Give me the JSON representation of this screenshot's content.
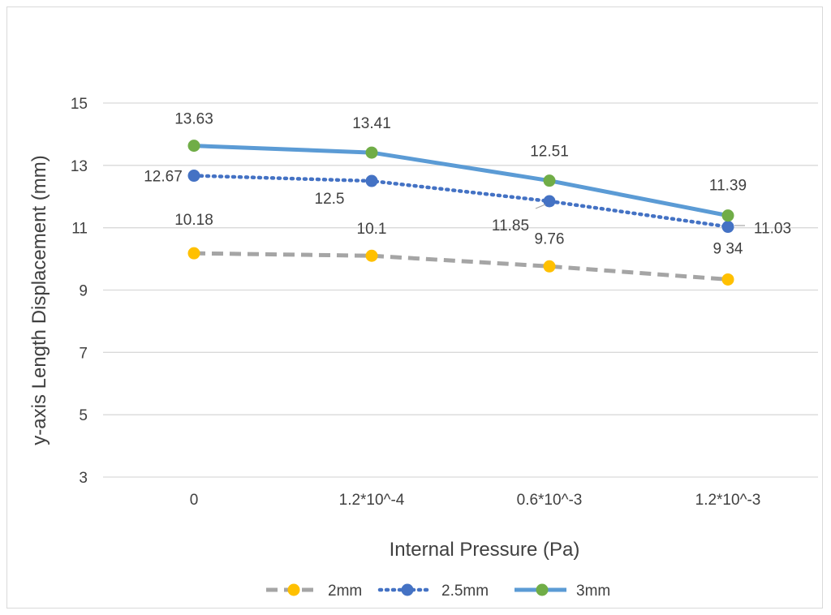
{
  "chart_data": {
    "type": "line",
    "categories": [
      "0",
      "1.2*10^-4",
      "0.6*10^-3",
      "1.2*10^-3"
    ],
    "series": [
      {
        "name": "2mm",
        "values": [
          10.18,
          10.1,
          9.76,
          9.34
        ],
        "labels": [
          "10.18",
          "10.1",
          "9.76",
          "9 34"
        ],
        "color": "#a5a5a5",
        "marker_color": "#ffc000",
        "dash": "dashed"
      },
      {
        "name": "2.5mm",
        "values": [
          12.67,
          12.5,
          11.85,
          11.03
        ],
        "labels": [
          "12.67",
          "12.5",
          "11.85",
          "11.03"
        ],
        "color": "#4472c4",
        "marker_color": "#4472c4",
        "dash": "dotted"
      },
      {
        "name": "3mm",
        "values": [
          13.63,
          13.41,
          12.51,
          11.39
        ],
        "labels": [
          "13.63",
          "13.41",
          "12.51",
          "11.39"
        ],
        "color": "#5b9bd5",
        "marker_color": "#70ad47",
        "dash": "solid"
      }
    ],
    "xlabel": "Internal Pressure (Pa)",
    "ylabel": "y-axis Length Displacement (mm)",
    "ylim": [
      3,
      15
    ],
    "yticks": [
      3,
      5,
      7,
      9,
      11,
      13,
      15
    ],
    "grid": true,
    "legend": "bottom"
  }
}
